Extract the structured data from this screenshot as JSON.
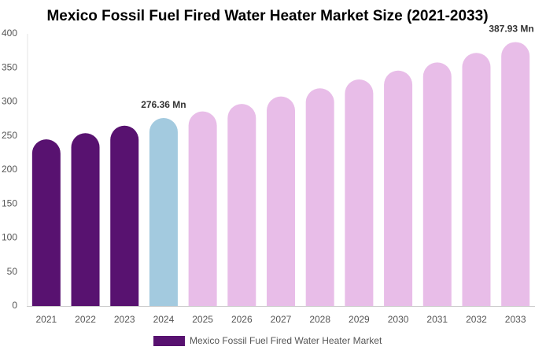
{
  "chart_data": {
    "type": "bar",
    "title": "Mexico Fossil Fuel Fired Water Heater Market Size (2021-2033)",
    "categories": [
      "2021",
      "2022",
      "2023",
      "2024",
      "2025",
      "2026",
      "2027",
      "2028",
      "2029",
      "2030",
      "2031",
      "2032",
      "2033"
    ],
    "series": [
      {
        "name": "Mexico Fossil Fuel Fired Water Heater Market",
        "color": "#581270",
        "values": [
          245,
          254,
          265,
          276.36,
          286,
          297,
          308,
          320,
          333,
          346,
          358,
          372,
          387.93
        ],
        "value_labels": [
          null,
          null,
          null,
          "276.36 Mn",
          null,
          null,
          null,
          null,
          null,
          null,
          null,
          null,
          "387.93 Mn"
        ]
      }
    ],
    "bar_colors": [
      "#581270",
      "#581270",
      "#581270",
      "#a3cadf",
      "#e8bde8",
      "#e8bde8",
      "#e8bde8",
      "#e8bde8",
      "#e8bde8",
      "#e8bde8",
      "#e8bde8",
      "#e8bde8",
      "#e8bde8"
    ],
    "ylim": [
      0,
      400
    ],
    "yticks": [
      0,
      50,
      100,
      150,
      200,
      250,
      300,
      350,
      400
    ],
    "grid": false
  }
}
